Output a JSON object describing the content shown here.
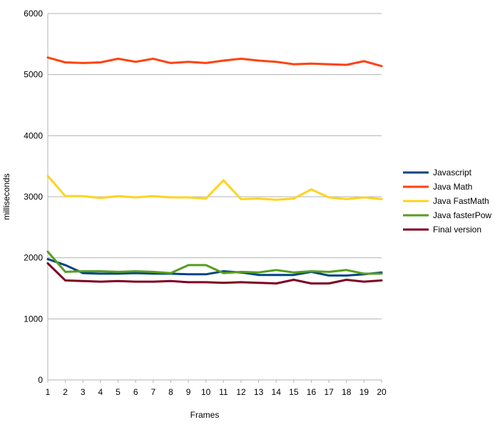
{
  "chart_data": {
    "type": "line",
    "title": "",
    "xlabel": "Frames",
    "ylabel": "milliseconds",
    "x": [
      1,
      2,
      3,
      4,
      5,
      6,
      7,
      8,
      9,
      10,
      11,
      12,
      13,
      14,
      15,
      16,
      17,
      18,
      19,
      20
    ],
    "ylim": [
      0,
      6000
    ],
    "yticks": [
      0,
      1000,
      2000,
      3000,
      4000,
      5000,
      6000
    ],
    "grid": true,
    "legend_position": "right",
    "series": [
      {
        "name": "Javascript",
        "color": "#004586",
        "values": [
          1980,
          1880,
          1750,
          1740,
          1740,
          1750,
          1740,
          1740,
          1730,
          1730,
          1780,
          1760,
          1720,
          1720,
          1720,
          1770,
          1710,
          1710,
          1730,
          1760
        ]
      },
      {
        "name": "Java Math",
        "color": "#ff420e",
        "values": [
          5280,
          5200,
          5190,
          5200,
          5260,
          5210,
          5260,
          5190,
          5210,
          5190,
          5230,
          5260,
          5230,
          5210,
          5170,
          5180,
          5170,
          5160,
          5220,
          5140
        ]
      },
      {
        "name": "Java FastMath",
        "color": "#ffd320",
        "values": [
          3340,
          3010,
          3010,
          2980,
          3010,
          2990,
          3010,
          2990,
          2990,
          2970,
          3270,
          2960,
          2970,
          2950,
          2970,
          3120,
          2990,
          2960,
          2990,
          2960
        ]
      },
      {
        "name": "Java fasterPow",
        "color": "#579d1c",
        "values": [
          2100,
          1770,
          1780,
          1780,
          1770,
          1780,
          1770,
          1750,
          1880,
          1880,
          1750,
          1770,
          1760,
          1800,
          1760,
          1780,
          1770,
          1800,
          1740,
          1740
        ]
      },
      {
        "name": "Final version",
        "color": "#7e0021",
        "values": [
          1910,
          1630,
          1620,
          1610,
          1620,
          1610,
          1610,
          1620,
          1600,
          1600,
          1590,
          1600,
          1590,
          1580,
          1640,
          1580,
          1580,
          1640,
          1610,
          1630
        ]
      }
    ]
  }
}
